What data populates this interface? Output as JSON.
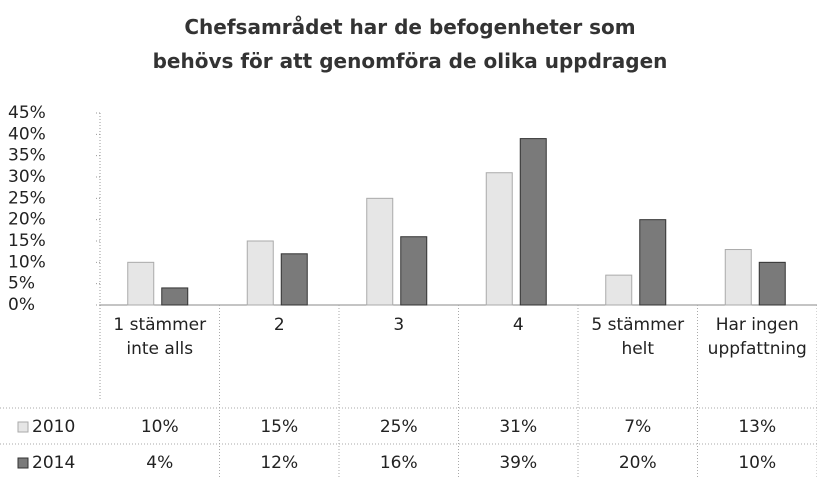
{
  "chart_data": {
    "type": "bar",
    "title": "Chefsamrådet har de befogenheter som behövs för att genomföra de olika uppdragen",
    "categories": [
      "1 stämmer inte alls",
      "2",
      "3",
      "4",
      "5 stämmer helt",
      "Har ingen uppfattning"
    ],
    "series": [
      {
        "name": "2010",
        "color": "#e6e6e6",
        "values": [
          10,
          15,
          25,
          31,
          7,
          13
        ],
        "value_labels": [
          "10%",
          "15%",
          "25%",
          "31%",
          "7%",
          "13%"
        ]
      },
      {
        "name": "2014",
        "color": "#7a7a7a",
        "values": [
          4,
          12,
          16,
          39,
          20,
          10
        ],
        "value_labels": [
          "4%",
          "12%",
          "16%",
          "39%",
          "20%",
          "10%"
        ]
      }
    ],
    "ylim": [
      0,
      45
    ],
    "yticks": [
      {
        "value": 0,
        "label": "0%"
      },
      {
        "value": 5,
        "label": "5%"
      },
      {
        "value": 10,
        "label": "10%"
      },
      {
        "value": 15,
        "label": "15%"
      },
      {
        "value": 20,
        "label": "20%"
      },
      {
        "value": 25,
        "label": "25%"
      },
      {
        "value": 30,
        "label": "30%"
      },
      {
        "value": 35,
        "label": "35%"
      },
      {
        "value": 40,
        "label": "40%"
      },
      {
        "value": 45,
        "label": "45%"
      }
    ]
  }
}
